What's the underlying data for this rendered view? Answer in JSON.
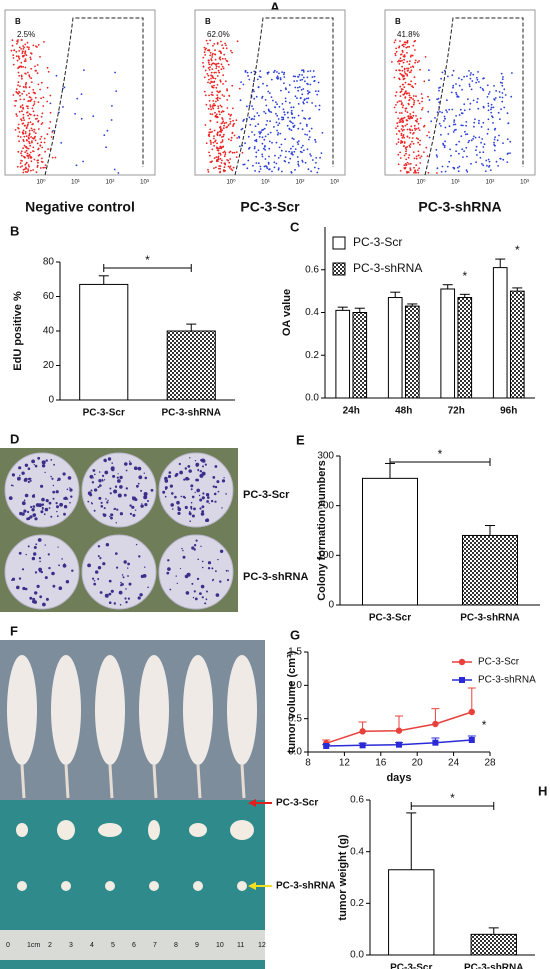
{
  "flow_cytometry": {
    "panel_label": "A",
    "xticks": [
      "10⁰",
      "10¹",
      "10²",
      "10³"
    ],
    "plots": [
      {
        "gate": "B",
        "percent": "2.5%",
        "caption": "Negative control"
      },
      {
        "gate": "B",
        "percent": "62.0%",
        "caption": "PC-3-Scr"
      },
      {
        "gate": "B",
        "percent": "41.8%",
        "caption": "PC-3-shRNA"
      }
    ]
  },
  "colony_photo": {
    "panel_label": "D",
    "labels": [
      "PC-3-Scr",
      "PC-3-shRNA"
    ]
  },
  "mouse_photo": {
    "panel_label": "F",
    "labels": [
      "PC-3-Scr",
      "PC-3-shRNA"
    ],
    "ruler": [
      "0",
      "1cm",
      "2",
      "3",
      "4",
      "5",
      "6",
      "7",
      "8",
      "9",
      "10",
      "11",
      "12"
    ]
  },
  "chart_data": [
    {
      "type": "bar",
      "panel_label": "B",
      "y_label": "EdU positive %",
      "categories": [
        "PC-3-Scr",
        "PC-3-shRNA"
      ],
      "values": [
        67,
        40
      ],
      "errors": [
        5,
        4
      ],
      "patterns": [
        "none",
        "checker"
      ],
      "ylim": [
        0,
        80
      ],
      "yticks": [
        0,
        20,
        40,
        60,
        80
      ],
      "significance": "*"
    },
    {
      "type": "bar",
      "panel_label": "C",
      "y_label": "OA value",
      "categories": [
        "24h",
        "48h",
        "72h",
        "96h"
      ],
      "series": [
        {
          "name": "PC-3-Scr",
          "pattern": "none",
          "values": [
            0.41,
            0.47,
            0.51,
            0.61
          ],
          "errors": [
            0.015,
            0.025,
            0.02,
            0.04
          ]
        },
        {
          "name": "PC-3-shRNA",
          "pattern": "checker",
          "values": [
            0.4,
            0.43,
            0.47,
            0.5
          ],
          "errors": [
            0.02,
            0.01,
            0.015,
            0.015
          ]
        }
      ],
      "ylim": [
        0,
        0.8
      ],
      "yticks": [
        {
          "value": 0,
          "label": "0.0"
        },
        0.2,
        0.4,
        0.6
      ],
      "significance": [
        null,
        null,
        "*",
        "*"
      ],
      "legend": "top-left"
    },
    {
      "type": "bar",
      "panel_label": "E",
      "y_label": "Colony formation numbers",
      "categories": [
        "PC-3-Scr",
        "PC-3-shRNA"
      ],
      "values": [
        255,
        140
      ],
      "errors": [
        30,
        20
      ],
      "patterns": [
        "none",
        "checker"
      ],
      "ylim": [
        0,
        300
      ],
      "yticks": [
        0,
        100,
        200,
        300
      ],
      "significance": "*"
    },
    {
      "type": "line",
      "panel_label": "G",
      "y_label": "tumor volume (cm³)",
      "x_label": "days",
      "x": [
        10,
        14,
        18,
        22,
        26
      ],
      "series": [
        {
          "name": "PC-3-Scr",
          "color": "#e8413c",
          "marker": "circle",
          "values": [
            0.13,
            0.31,
            0.32,
            0.42,
            0.6
          ],
          "errors": [
            0.05,
            0.14,
            0.22,
            0.23,
            0.36
          ]
        },
        {
          "name": "PC-3-shRNA",
          "color": "#2a2ad6",
          "marker": "square",
          "values": [
            0.09,
            0.1,
            0.11,
            0.14,
            0.18
          ],
          "errors": [
            0.02,
            0.03,
            0.03,
            0.07,
            0.06
          ]
        }
      ],
      "xlim": [
        8,
        28
      ],
      "xticks": [
        8,
        12,
        16,
        20,
        24,
        28
      ],
      "ylim": [
        0,
        1.5
      ],
      "yticks": [
        {
          "value": 0,
          "label": "0.0"
        },
        0.5,
        {
          "value": 1,
          "label": "1.0"
        },
        1.5
      ],
      "significance": "*",
      "legend": "top-right"
    },
    {
      "type": "bar",
      "panel_label": "H",
      "y_label": "tumor weight (g)",
      "categories": [
        "PC-3-Scr",
        "PC-3-shRNA"
      ],
      "values": [
        0.33,
        0.08
      ],
      "errors": [
        0.22,
        0.025
      ],
      "patterns": [
        "none",
        "checker"
      ],
      "ylim": [
        0,
        0.6
      ],
      "yticks": [
        {
          "value": 0,
          "label": "0.0"
        },
        0.2,
        0.4,
        0.6
      ],
      "significance": "*"
    }
  ]
}
